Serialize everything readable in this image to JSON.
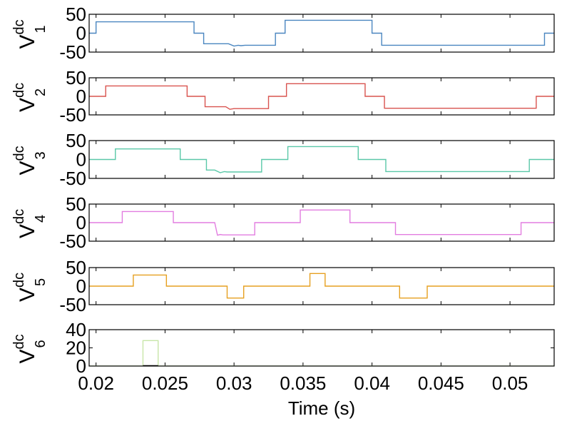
{
  "chart_data": {
    "type": "line",
    "xlabel": "Time (s)",
    "xlim": [
      0.0195,
      0.0532
    ],
    "xticks": [
      "0.02",
      "0.025",
      "0.03",
      "0.035",
      "0.04",
      "0.045",
      "0.05"
    ],
    "xtick_values": [
      0.02,
      0.025,
      0.03,
      0.035,
      0.04,
      0.045,
      0.05
    ],
    "grid": false,
    "subplots": [
      {
        "ylabel": {
          "main": "V",
          "sup": "dc",
          "sub": "1"
        },
        "ylim": [
          -50,
          50
        ],
        "yticks": [
          "50",
          "0",
          "-50"
        ],
        "ytick_values": [
          50,
          0,
          -50
        ],
        "color": "#4a86c0",
        "x": [
          0.0195,
          0.02,
          0.02,
          0.0271,
          0.0271,
          0.0278,
          0.0278,
          0.0296,
          0.03,
          0.0303,
          0.0305,
          0.0308,
          0.033,
          0.033,
          0.0337,
          0.0337,
          0.04,
          0.04,
          0.0407,
          0.0407,
          0.0525,
          0.0525,
          0.0532
        ],
        "y": [
          0,
          0,
          30,
          30,
          0,
          0,
          -28,
          -28,
          -34,
          -32,
          -33,
          -32,
          -32,
          0,
          0,
          34,
          34,
          0,
          0,
          -32,
          -32,
          0,
          0
        ]
      },
      {
        "ylabel": {
          "main": "V",
          "sup": "dc",
          "sub": "2"
        },
        "ylim": [
          -50,
          50
        ],
        "yticks": [
          "50",
          "0",
          "-50"
        ],
        "ytick_values": [
          50,
          0,
          -50
        ],
        "color": "#d9534f",
        "x": [
          0.0195,
          0.0207,
          0.0207,
          0.0266,
          0.0266,
          0.0279,
          0.0279,
          0.0294,
          0.0297,
          0.03,
          0.0302,
          0.0325,
          0.0325,
          0.0338,
          0.0338,
          0.0395,
          0.0395,
          0.0409,
          0.0409,
          0.0519,
          0.0519,
          0.0532
        ],
        "y": [
          0,
          0,
          28,
          28,
          0,
          0,
          -28,
          -28,
          -35,
          -33,
          -33,
          -33,
          0,
          0,
          34,
          34,
          0,
          0,
          -32,
          -32,
          0,
          0
        ]
      },
      {
        "ylabel": {
          "main": "V",
          "sup": "dc",
          "sub": "3"
        },
        "ylim": [
          -50,
          50
        ],
        "yticks": [
          "50",
          "0",
          "-50"
        ],
        "ytick_values": [
          50,
          0,
          -50
        ],
        "color": "#5ac8a8",
        "x": [
          0.0195,
          0.0214,
          0.0214,
          0.0261,
          0.0261,
          0.028,
          0.028,
          0.0286,
          0.029,
          0.0293,
          0.0295,
          0.032,
          0.032,
          0.0339,
          0.0339,
          0.039,
          0.039,
          0.041,
          0.041,
          0.0514,
          0.0514,
          0.0532
        ],
        "y": [
          0,
          0,
          28,
          28,
          0,
          0,
          -28,
          -28,
          -35,
          -32,
          -33,
          -33,
          0,
          0,
          34,
          34,
          0,
          0,
          -32,
          -32,
          0,
          0
        ]
      },
      {
        "ylabel": {
          "main": "V",
          "sup": "dc",
          "sub": "4"
        },
        "ylim": [
          -50,
          50
        ],
        "yticks": [
          "50",
          "0",
          "-50"
        ],
        "ytick_values": [
          50,
          0,
          -50
        ],
        "color": "#e27de0",
        "x": [
          0.0195,
          0.0219,
          0.0219,
          0.0256,
          0.0256,
          0.0286,
          0.0288,
          0.029,
          0.0292,
          0.0315,
          0.0315,
          0.0348,
          0.0348,
          0.0384,
          0.0384,
          0.0417,
          0.0417,
          0.0508,
          0.0508,
          0.0532
        ],
        "y": [
          0,
          0,
          30,
          30,
          0,
          0,
          -34,
          -32,
          -33,
          -33,
          0,
          0,
          34,
          34,
          0,
          0,
          -32,
          -32,
          0,
          0
        ]
      },
      {
        "ylabel": {
          "main": "V",
          "sup": "dc",
          "sub": "5"
        },
        "ylim": [
          -50,
          50
        ],
        "yticks": [
          "50",
          "0",
          "-50"
        ],
        "ytick_values": [
          50,
          0,
          -50
        ],
        "color": "#e6a020",
        "x": [
          0.0195,
          0.0227,
          0.0227,
          0.0251,
          0.0251,
          0.0295,
          0.0295,
          0.0307,
          0.0307,
          0.0355,
          0.0355,
          0.0366,
          0.0366,
          0.042,
          0.042,
          0.044,
          0.044,
          0.0501,
          0.0501,
          0.0532
        ],
        "y": [
          0,
          0,
          30,
          30,
          0,
          0,
          -32,
          -32,
          0,
          0,
          34,
          34,
          0,
          0,
          -32,
          -32,
          0,
          0,
          0,
          0
        ]
      },
      {
        "ylabel": {
          "main": "V",
          "sup": "dc",
          "sub": "6"
        },
        "ylim": [
          0,
          40
        ],
        "yticks": [
          "40",
          "20",
          "0"
        ],
        "ytick_values": [
          40,
          20,
          0
        ],
        "color": "#c8e6a8",
        "x": [
          0.0195,
          0.0234,
          0.0234,
          0.0245,
          0.0245,
          0.0532
        ],
        "y": [
          0,
          0,
          28,
          28,
          0,
          0
        ],
        "baseline_segment": {
          "x": [
            0.0234,
            0.0245
          ],
          "y": [
            0,
            0
          ],
          "color": "#000000"
        }
      }
    ]
  }
}
